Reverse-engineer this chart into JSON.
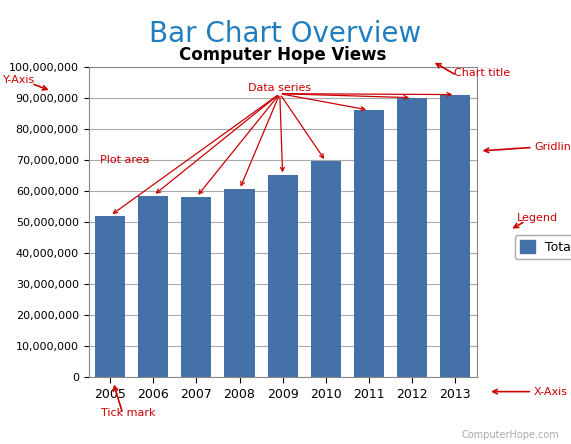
{
  "title": "Bar Chart Overview",
  "chart_inner_title": "Computer Hope Views",
  "years": [
    2005,
    2006,
    2007,
    2008,
    2009,
    2010,
    2011,
    2012,
    2013
  ],
  "values": [
    52000000,
    58500000,
    58000000,
    60500000,
    65000000,
    69500000,
    86000000,
    90000000,
    91000000
  ],
  "bar_color": "#4472a8",
  "ylim": [
    0,
    100000000
  ],
  "ytick_step": 10000000,
  "background_color": "#ffffff",
  "plot_bg_color": "#ffffff",
  "title_color": "#1f7ec1",
  "inner_title_color": "#000000",
  "annotation_color": "#cc0000",
  "legend_label": "Total",
  "footer_text": "ComputerHope.com"
}
